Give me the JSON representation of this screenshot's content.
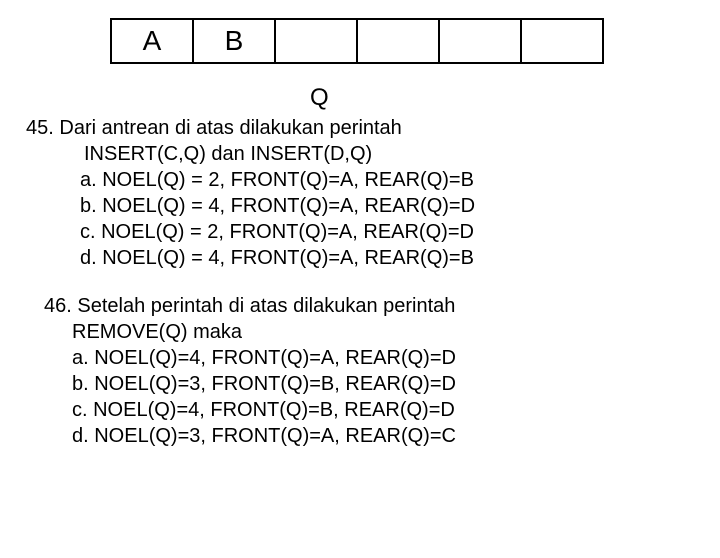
{
  "queue": {
    "cells": [
      "A",
      "B",
      "",
      "",
      "",
      ""
    ],
    "label": "Q"
  },
  "q45": {
    "number": "45.",
    "text1": "Dari antrean di atas dilakukan perintah",
    "text2": "INSERT(C,Q) dan INSERT(D,Q)",
    "opts": {
      "a": "a.  NOEL(Q) = 2, FRONT(Q)=A, REAR(Q)=B",
      "b": "b.  NOEL(Q) = 4, FRONT(Q)=A, REAR(Q)=D",
      "c": "c.  NOEL(Q) = 2, FRONT(Q)=A, REAR(Q)=D",
      "d": "d.  NOEL(Q) = 4, FRONT(Q)=A, REAR(Q)=B"
    }
  },
  "q46": {
    "number": "46.",
    "text1": "Setelah perintah di atas dilakukan perintah",
    "text2": "REMOVE(Q) maka",
    "opts": {
      "a": "a. NOEL(Q)=4, FRONT(Q)=A, REAR(Q)=D",
      "b": "b. NOEL(Q)=3, FRONT(Q)=B, REAR(Q)=D",
      "c": "c. NOEL(Q)=4, FRONT(Q)=B, REAR(Q)=D",
      "d": "d. NOEL(Q)=3, FRONT(Q)=A, REAR(Q)=C"
    }
  }
}
